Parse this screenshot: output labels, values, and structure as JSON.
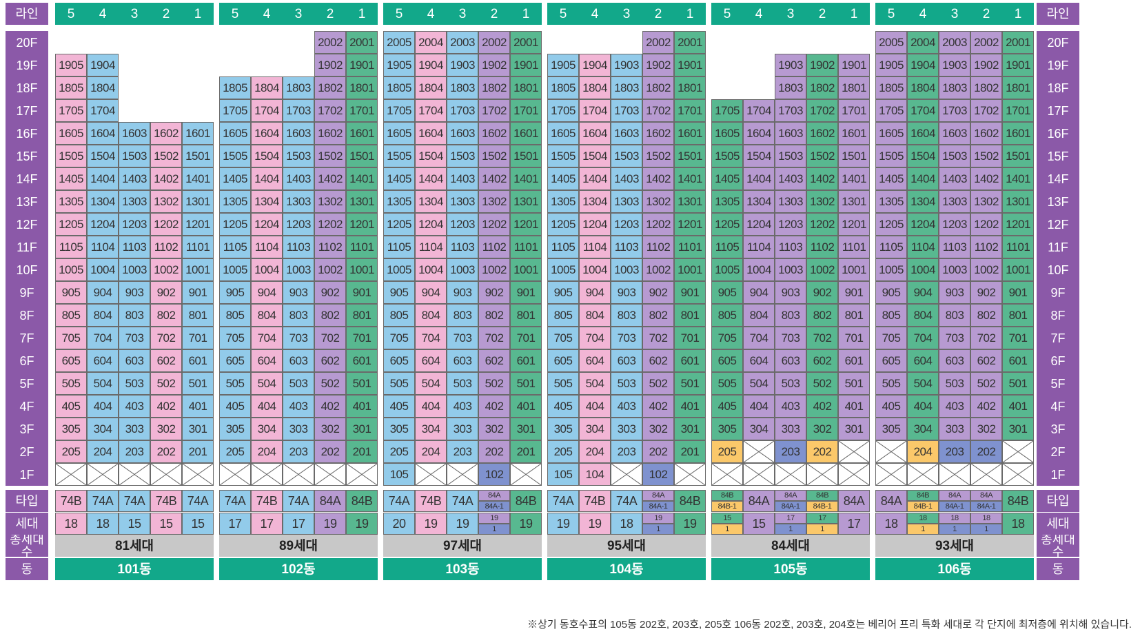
{
  "side_labels": {
    "line": "라인",
    "type": "타입",
    "households": "세대",
    "total": "총세대수",
    "dong": "동"
  },
  "floors": [
    "20F",
    "19F",
    "18F",
    "17F",
    "16F",
    "15F",
    "14F",
    "13F",
    "12F",
    "11F",
    "10F",
    "9F",
    "8F",
    "7F",
    "6F",
    "5F",
    "4F",
    "3F",
    "2F",
    "1F"
  ],
  "line_numbers": [
    "5",
    "4",
    "3",
    "2",
    "1"
  ],
  "unit_colors": {
    "74A": "#92cbea",
    "74B": "#f2b5d5",
    "84A": "#b79ad1",
    "84B": "#58b890",
    "84A-1": "#7f92cf",
    "84B-1": "#fbc86a",
    "line_header": "#12a88a",
    "side_label": "#8b59a8"
  },
  "buildings": [
    {
      "dong": "101동",
      "total": "81세대",
      "colors": [
        "pink",
        "blue",
        "blue",
        "pink",
        "blue"
      ],
      "top": [
        19,
        19,
        16,
        16,
        16
      ],
      "types": [
        {
          "t": "74B"
        },
        {
          "t": "74A"
        },
        {
          "t": "74A"
        },
        {
          "t": "74B"
        },
        {
          "t": "74A"
        }
      ],
      "counts": [
        {
          "c": "18"
        },
        {
          "c": "18"
        },
        {
          "c": "15"
        },
        {
          "c": "15"
        },
        {
          "c": "15"
        }
      ],
      "f1": [
        null,
        null,
        null,
        null,
        null
      ],
      "f2": [
        null,
        null,
        null,
        null,
        null
      ]
    },
    {
      "dong": "102동",
      "total": "89세대",
      "colors": [
        "blue",
        "pink",
        "blue",
        "purple",
        "green"
      ],
      "top": [
        18,
        18,
        18,
        20,
        20
      ],
      "types": [
        {
          "t": "74A"
        },
        {
          "t": "74B"
        },
        {
          "t": "74A"
        },
        {
          "t": "84A"
        },
        {
          "t": "84B"
        }
      ],
      "counts": [
        {
          "c": "17"
        },
        {
          "c": "17"
        },
        {
          "c": "17"
        },
        {
          "c": "19"
        },
        {
          "c": "19"
        }
      ],
      "f1": [
        null,
        null,
        null,
        null,
        null
      ],
      "f2": [
        null,
        null,
        null,
        null,
        null
      ]
    },
    {
      "dong": "103동",
      "total": "97세대",
      "colors": [
        "blue",
        "pink",
        "blue",
        "purple",
        "green"
      ],
      "top": [
        20,
        20,
        20,
        20,
        20
      ],
      "types": [
        {
          "t": "74A"
        },
        {
          "t": "74B"
        },
        {
          "t": "74A"
        },
        {
          "t": "84A",
          "s": "84A-1"
        },
        {
          "t": "84B"
        }
      ],
      "counts": [
        {
          "c": "20"
        },
        {
          "c": "19"
        },
        {
          "c": "19"
        },
        {
          "c": "19",
          "s": "1"
        },
        {
          "c": "19"
        }
      ],
      "f1": [
        "105",
        null,
        null,
        "102",
        null
      ],
      "f2": [
        null,
        null,
        null,
        null,
        null
      ]
    },
    {
      "dong": "104동",
      "total": "95세대",
      "colors": [
        "blue",
        "pink",
        "blue",
        "purple",
        "green"
      ],
      "top": [
        19,
        19,
        19,
        20,
        20
      ],
      "types": [
        {
          "t": "74A"
        },
        {
          "t": "74B"
        },
        {
          "t": "74A"
        },
        {
          "t": "84A",
          "s": "84A-1"
        },
        {
          "t": "84B"
        }
      ],
      "counts": [
        {
          "c": "19"
        },
        {
          "c": "19"
        },
        {
          "c": "18"
        },
        {
          "c": "19",
          "s": "1"
        },
        {
          "c": "19"
        }
      ],
      "f1": [
        "105",
        "104",
        null,
        "102",
        null
      ],
      "f2": [
        null,
        null,
        null,
        null,
        null
      ]
    },
    {
      "dong": "105동",
      "total": "84세대",
      "colors": [
        "green",
        "purple",
        "purple",
        "green",
        "purple"
      ],
      "top": [
        17,
        17,
        19,
        19,
        19
      ],
      "types": [
        {
          "t": "84B",
          "s": "84B-1"
        },
        {
          "t": "84A"
        },
        {
          "t": "84A",
          "s": "84A-1"
        },
        {
          "t": "84B",
          "s": "84B-1"
        },
        {
          "t": "84A"
        }
      ],
      "counts": [
        {
          "c": "15",
          "s": "1"
        },
        {
          "c": "15"
        },
        {
          "c": "17",
          "s": "1"
        },
        {
          "c": "17",
          "s": "1"
        },
        {
          "c": "17"
        }
      ],
      "f1": [
        null,
        null,
        null,
        null,
        null
      ],
      "f2": [
        "205",
        null,
        "203",
        "202",
        null
      ]
    },
    {
      "dong": "106동",
      "total": "93세대",
      "colors": [
        "purple",
        "green",
        "purple",
        "purple",
        "green"
      ],
      "top": [
        20,
        20,
        20,
        20,
        20
      ],
      "types": [
        {
          "t": "84A"
        },
        {
          "t": "84B",
          "s": "84B-1"
        },
        {
          "t": "84A",
          "s": "84A-1"
        },
        {
          "t": "84A",
          "s": "84A-1"
        },
        {
          "t": "84B"
        }
      ],
      "counts": [
        {
          "c": "18"
        },
        {
          "c": "18",
          "s": "1"
        },
        {
          "c": "18",
          "s": "1"
        },
        {
          "c": "18",
          "s": "1"
        },
        {
          "c": "18"
        }
      ],
      "f1": [
        null,
        null,
        null,
        null,
        null
      ],
      "f2": [
        null,
        "204",
        "203",
        "202",
        null
      ]
    }
  ],
  "special_colors": {
    "105동": {
      "205": "orange",
      "203": "dblue",
      "202": "orange"
    },
    "106동": {
      "204": "orange",
      "203": "dblue",
      "202": "dblue"
    },
    "103동": {
      "102": "dblue"
    },
    "104동": {
      "102": "dblue"
    }
  },
  "footnote": "※상기 동호수표의 105동 202호, 203호, 205호 106동 202호, 203호, 204호는 베리어 프리 특화 세대로 각 단지에 최저층에 위치해 있습니다."
}
